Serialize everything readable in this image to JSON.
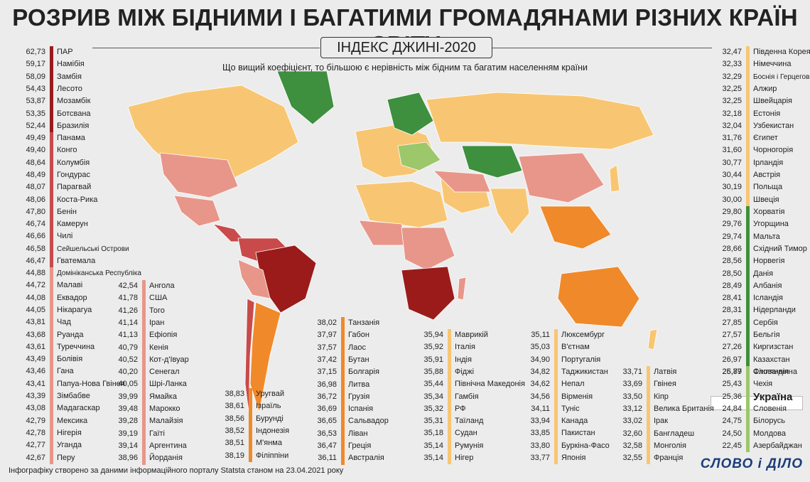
{
  "title": "РОЗРИВ МІЖ БІДНИМИ І БАГАТИМИ ГРОМАДЯНАМИ РІЗНИХ КРАЇН СВІТУ",
  "subtitle": "ІНДЕКС ДЖИНІ-2020",
  "note": "Що вищий коефіцієнт, то більшою є нерівність між бідним та багатим населенням країни",
  "footer": "Інфографіку створено за даними інформаційного порталу Statsta станом на 23.04.2021 року",
  "logo": "СЛОВО і ДІЛО",
  "colors": {
    "c1": "#9b1b1b",
    "c2": "#c94a4a",
    "c3": "#e8968a",
    "c4": "#f0892a",
    "c5": "#f8c672",
    "c6": "#3e8f3e",
    "c7": "#9cc76a",
    "nodata": "#d9d9d9",
    "ocean": "#ececec"
  },
  "chart_data": {
    "type": "table",
    "title": "РОЗРИВ МІЖ БІДНИМИ І БАГАТИМИ ГРОМАДЯНАМИ РІЗНИХ КРАЇН СВІТУ",
    "subtitle": "ІНДЕКС ДЖИНІ-2020",
    "groups": [
      {
        "color": "#9b1b1b",
        "rows": [
          [
            "62,73",
            "ПАР"
          ],
          [
            "59,17",
            "Намібія"
          ],
          [
            "58,09",
            "Замбія"
          ],
          [
            "54,43",
            "Лесото"
          ],
          [
            "53,87",
            "Мозамбік"
          ],
          [
            "53,35",
            "Ботсвана"
          ],
          [
            "52,44",
            "Бразилія"
          ]
        ]
      },
      {
        "color": "#c94a4a",
        "rows": [
          [
            "49,49",
            "Панама"
          ],
          [
            "49,40",
            "Конго"
          ],
          [
            "48,64",
            "Колумбія"
          ],
          [
            "48,49",
            "Гондурас"
          ],
          [
            "48,07",
            "Парагвай"
          ],
          [
            "48,06",
            "Коста-Рика"
          ],
          [
            "47,80",
            "Бенін"
          ],
          [
            "46,74",
            "Камерун"
          ],
          [
            "46,66",
            "Чилі"
          ],
          [
            "46,58",
            "Сейшельські Острови"
          ],
          [
            "46,47",
            "Гватемала"
          ]
        ]
      },
      {
        "color": "#e8968a",
        "rows": [
          [
            "44,88",
            "Домініканська Республіка"
          ],
          [
            "44,72",
            "Малаві"
          ],
          [
            "44,08",
            "Еквадор"
          ],
          [
            "44,05",
            "Нікарагуа"
          ],
          [
            "43,81",
            "Чад"
          ],
          [
            "43,68",
            "Руанда"
          ],
          [
            "43,61",
            "Туреччина"
          ],
          [
            "43,49",
            "Болівія"
          ],
          [
            "43,46",
            "Гана"
          ],
          [
            "43,41",
            "Папуа-Нова Гвінея"
          ],
          [
            "43,39",
            "Зімбабве"
          ],
          [
            "43,08",
            "Мадагаскар"
          ],
          [
            "42,79",
            "Мексика"
          ],
          [
            "42,78",
            "Нігерія"
          ],
          [
            "42,77",
            "Уганда"
          ],
          [
            "42,67",
            "Перу"
          ]
        ]
      },
      {
        "color": "#e8968a",
        "rows": [
          [
            "42,54",
            "Ангола"
          ],
          [
            "41,78",
            "США"
          ],
          [
            "41,26",
            "Того"
          ],
          [
            "41,14",
            "Іран"
          ],
          [
            "41,13",
            "Ефіопія"
          ],
          [
            "40,79",
            "Кенія"
          ],
          [
            "40,52",
            "Кот-д'Івуар"
          ],
          [
            "40,20",
            "Сенегал"
          ],
          [
            "40,05",
            "Шрі-Ланка"
          ],
          [
            "39,99",
            "Ямайка"
          ],
          [
            "39,48",
            "Марокко"
          ],
          [
            "39,28",
            "Малайзія"
          ],
          [
            "39,19",
            "Гаїті"
          ],
          [
            "39,14",
            "Аргентина"
          ],
          [
            "38,96",
            "Йорданія"
          ]
        ]
      },
      {
        "color": "#f0892a",
        "rows": [
          [
            "38,83",
            "Уругвай"
          ],
          [
            "38,61",
            "Ізраїль"
          ],
          [
            "38,56",
            "Бурунді"
          ],
          [
            "38,52",
            "Індонезія"
          ],
          [
            "38,51",
            "М'янма"
          ],
          [
            "38,19",
            "Філіппіни"
          ]
        ]
      },
      {
        "color": "#f0892a",
        "rows": [
          [
            "38,02",
            "Танзанія"
          ],
          [
            "37,97",
            "Габон"
          ],
          [
            "37,57",
            "Лаос"
          ],
          [
            "37,42",
            "Бутан"
          ],
          [
            "37,15",
            "Болгарія"
          ],
          [
            "36,98",
            "Литва"
          ],
          [
            "36,72",
            "Грузія"
          ],
          [
            "36,69",
            "Іспанія"
          ],
          [
            "36,65",
            "Сальвадор"
          ],
          [
            "36,53",
            "Ліван"
          ],
          [
            "36,47",
            "Греція"
          ],
          [
            "36,11",
            "Австралія"
          ]
        ]
      },
      {
        "color": "#f8c672",
        "rows": [
          [
            "35,94",
            "Маврикій"
          ],
          [
            "35,92",
            "Італія"
          ],
          [
            "35,91",
            "Індія"
          ],
          [
            "35,88",
            "Фіджі"
          ],
          [
            "35,44",
            "Північна Македонія"
          ],
          [
            "35,34",
            "Гамбія"
          ],
          [
            "35,32",
            "РФ"
          ],
          [
            "35,31",
            "Таїланд"
          ],
          [
            "35,18",
            "Судан"
          ],
          [
            "35,14",
            "Румунія"
          ],
          [
            "35,14",
            "Нігер"
          ]
        ]
      },
      {
        "color": "#f8c672",
        "rows": [
          [
            "35,11",
            "Люксембург"
          ],
          [
            "35,03",
            "В'єтнам"
          ],
          [
            "34,90",
            "Португалія"
          ],
          [
            "34,82",
            "Таджикистан"
          ],
          [
            "34,62",
            "Непал"
          ],
          [
            "34,56",
            "Вірменія"
          ],
          [
            "34,11",
            "Туніс"
          ],
          [
            "33,94",
            "Канада"
          ],
          [
            "33,85",
            "Пакистан"
          ],
          [
            "33,80",
            "Буркіна-Фасо"
          ],
          [
            "33,77",
            "Японія"
          ]
        ]
      },
      {
        "color": "#f8c672",
        "rows": [
          [
            "33,71",
            "Латвія"
          ],
          [
            "33,69",
            "Гвінея"
          ],
          [
            "33,50",
            "Кіпр"
          ],
          [
            "33,12",
            "Велика Британія"
          ],
          [
            "33,02",
            "Ірак"
          ],
          [
            "32,60",
            "Бангладеш"
          ],
          [
            "32,58",
            "Монголія"
          ],
          [
            "32,55",
            "Франція"
          ]
        ]
      },
      {
        "color": "#f8c672",
        "rows": [
          [
            "32,47",
            "Південна Корея"
          ],
          [
            "32,33",
            "Німеччина"
          ],
          [
            "32,29",
            "Боснія і Герцеговина"
          ],
          [
            "32,25",
            "Алжир"
          ],
          [
            "32,25",
            "Швейцарія"
          ],
          [
            "32,18",
            "Естонія"
          ],
          [
            "32,04",
            "Узбекистан"
          ],
          [
            "31,76",
            "Єгипет"
          ],
          [
            "31,60",
            "Чорногорія"
          ],
          [
            "30,77",
            "Ірландія"
          ],
          [
            "30,44",
            "Австрія"
          ],
          [
            "30,19",
            "Польща"
          ],
          [
            "30,00",
            "Швеція"
          ]
        ]
      },
      {
        "color": "#3e8f3e",
        "rows": [
          [
            "29,80",
            "Хорватія"
          ],
          [
            "29,76",
            "Угорщина"
          ],
          [
            "29,74",
            "Мальта"
          ],
          [
            "28,66",
            "Східний Тимор"
          ],
          [
            "28,56",
            "Норвегія"
          ],
          [
            "28,50",
            "Данія"
          ],
          [
            "28,49",
            "Албанія"
          ],
          [
            "28,41",
            "Ісландія"
          ],
          [
            "28,31",
            "Нідерланди"
          ],
          [
            "27,85",
            "Сербія"
          ],
          [
            "27,57",
            "Бельгія"
          ],
          [
            "27,26",
            "Киргизстан"
          ],
          [
            "26,97",
            "Казахстан"
          ],
          [
            "26,89",
            "Фінляндія"
          ]
        ]
      },
      {
        "color": "#9cc76a",
        "rows": [
          [
            "25,77",
            "Словаччина"
          ],
          [
            "25,43",
            "Чехія"
          ],
          [
            "25,36",
            "Україна"
          ],
          [
            "24,84",
            "Словенія"
          ],
          [
            "24,75",
            "Білорусь"
          ],
          [
            "24,50",
            "Молдова"
          ],
          [
            "22,45",
            "Азербайджан"
          ]
        ]
      }
    ]
  }
}
